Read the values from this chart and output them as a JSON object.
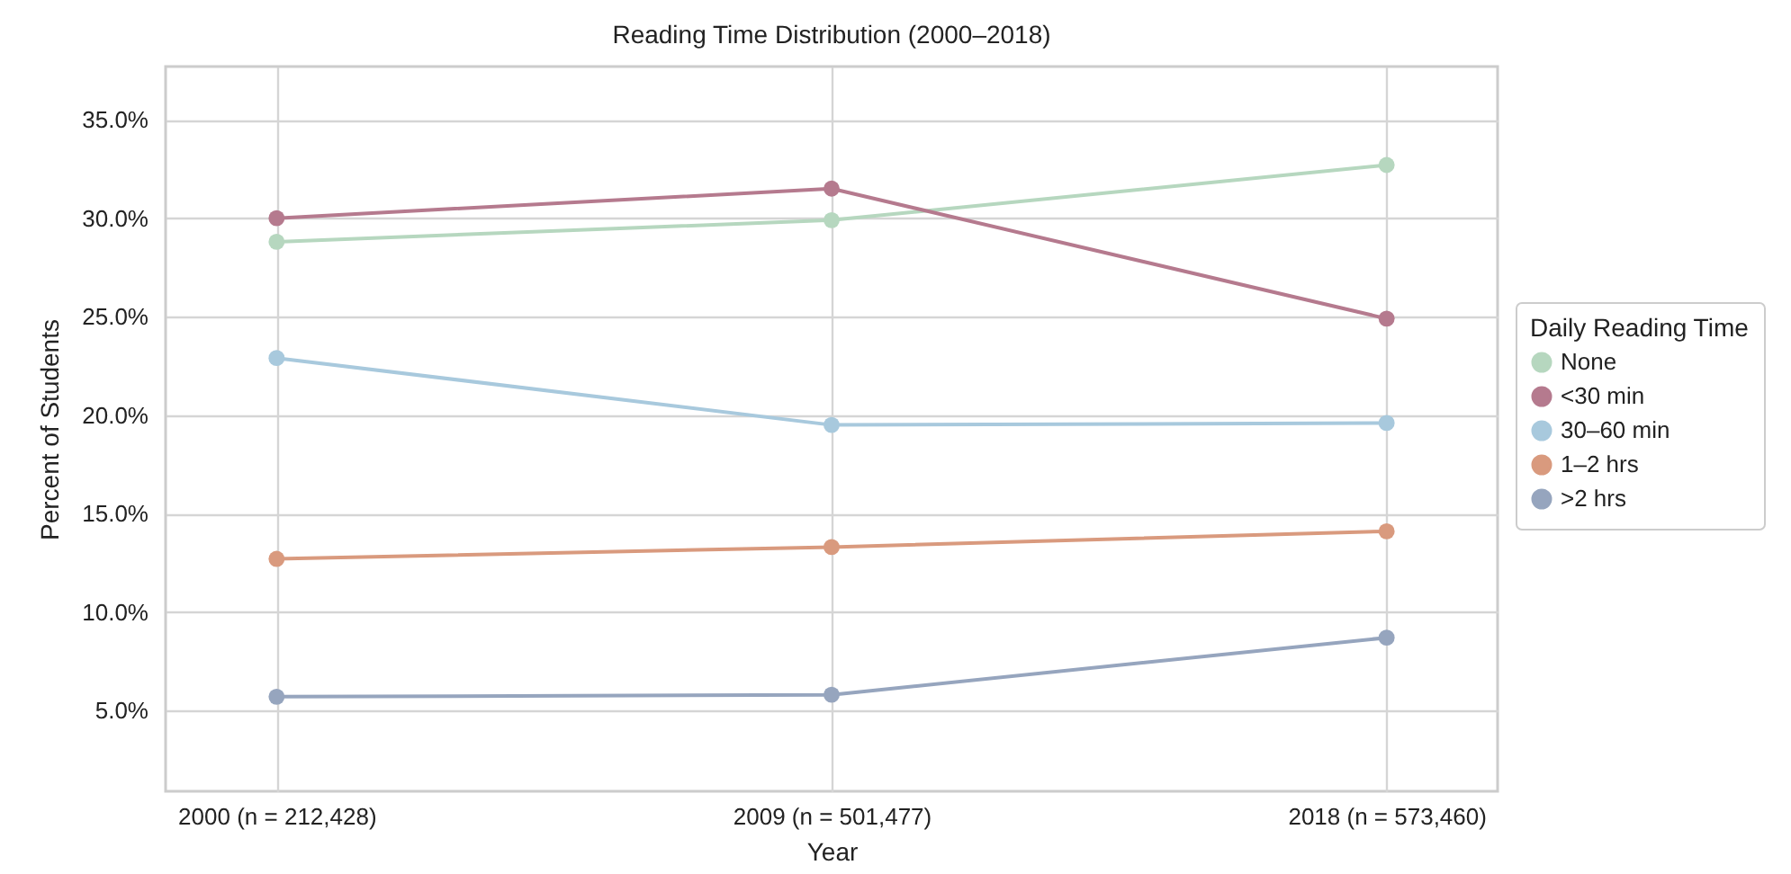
{
  "chart_data": {
    "type": "line",
    "title": "Reading Time Distribution (2000–2018)",
    "xlabel": "Year",
    "ylabel": "Percent of Students",
    "legend_title": "Daily Reading Time",
    "categories": [
      "2000 (n = 212,428)",
      "2009 (n = 501,477)",
      "2018 (n = 573,460)"
    ],
    "series": [
      {
        "name": "None",
        "color": "#b6d7bf",
        "values": [
          28.8,
          29.9,
          32.7
        ]
      },
      {
        "name": "<30 min",
        "color": "#b57a8e",
        "values": [
          30.0,
          31.5,
          24.9
        ]
      },
      {
        "name": "30–60 min",
        "color": "#a8c9dd",
        "values": [
          22.9,
          19.5,
          19.6
        ]
      },
      {
        "name": "1–2 hrs",
        "color": "#d99a7e",
        "values": [
          12.7,
          13.3,
          14.1
        ]
      },
      {
        "name": ">2 hrs",
        "color": "#96a5be",
        "values": [
          5.7,
          5.8,
          8.7
        ]
      }
    ],
    "ylim": [
      0.9,
      37.7
    ],
    "yticks": [
      {
        "value": 5,
        "label": "5.0%"
      },
      {
        "value": 10,
        "label": "10.0%"
      },
      {
        "value": 15,
        "label": "15.0%"
      },
      {
        "value": 20,
        "label": "20.0%"
      },
      {
        "value": 25,
        "label": "25.0%"
      },
      {
        "value": 30,
        "label": "30.0%"
      },
      {
        "value": 35,
        "label": "35.0%"
      }
    ],
    "grid": true,
    "legend": "right",
    "marker": "circle",
    "line_style": "solid"
  }
}
